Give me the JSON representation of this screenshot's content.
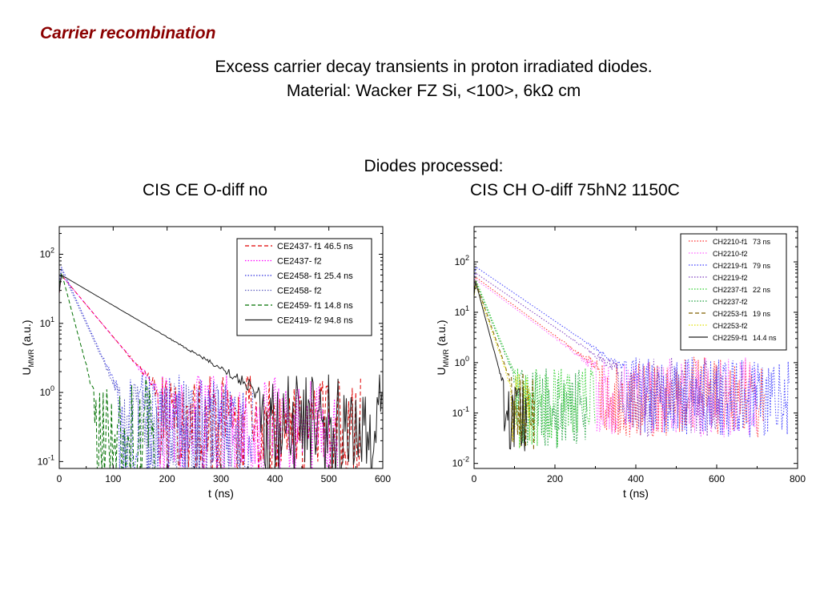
{
  "slide": {
    "heading": "Carrier recombination",
    "title_line1": "Excess carrier decay transients in proton irradiated  diodes.",
    "title_line2_prefix": "Material: Wacker FZ Si,  <100>,  6k",
    "title_line2_omega": "Ω",
    "title_line2_suffix": " cm",
    "diodes_heading": "Diodes  processed:",
    "left_caption": "CIS CE O-diff no",
    "right_caption": "CIS CH O-diff 75hN2 1150C"
  },
  "chart_data": [
    {
      "type": "line",
      "yscale": "log",
      "xlabel": "t (ns)",
      "ylabel": "U",
      "ylabel_sub": "MWR",
      "ylabel_unit": "(a.u.)",
      "xlim": [
        0,
        600
      ],
      "ylim_log10": [
        -1.1,
        2.4
      ],
      "xticks": [
        0,
        100,
        200,
        300,
        400,
        500,
        600
      ],
      "yticks": [
        {
          "base": "10",
          "exp": "2"
        },
        {
          "base": "10",
          "exp": "1"
        },
        {
          "base": "10",
          "exp": "0"
        },
        {
          "base": "10",
          "exp": "-1"
        }
      ],
      "legend_position": "top-right",
      "series": [
        {
          "name": "CE2437- f1 46.5 ns",
          "color": "#e00000",
          "dash": "dashed",
          "peak": 50,
          "tau": 46.5,
          "noise_floor": 0.35,
          "end": 560
        },
        {
          "name": "CE2437- f2",
          "color": "#ff00ff",
          "dash": "dotted",
          "peak": 50,
          "tau": 46.5,
          "noise_floor": 0.35,
          "end": 520
        },
        {
          "name": "CE2458- f1 25.4 ns",
          "color": "#3030e0",
          "dash": "dotted",
          "peak": 65,
          "tau": 25.4,
          "noise_floor": 0.35,
          "end": 360
        },
        {
          "name": "CE2458- f2",
          "color": "#6060c0",
          "dash": "dotted",
          "peak": 60,
          "tau": 25.4,
          "noise_floor": 0.3,
          "end": 340
        },
        {
          "name": "CE2459- f1 14.8 ns",
          "color": "#007000",
          "dash": "dashed",
          "peak": 55,
          "tau": 14.8,
          "noise_floor": 0.3,
          "end": 180
        },
        {
          "name": "CE2419- f2 94.8 ns",
          "color": "#202020",
          "dash": "solid",
          "peak": 50,
          "tau": 94.8,
          "noise_floor": 0.35,
          "end": 600
        }
      ]
    },
    {
      "type": "line",
      "yscale": "log",
      "xlabel": "t (ns)",
      "ylabel": "U",
      "ylabel_sub": "MWR",
      "ylabel_unit": "(a.u.)",
      "xlim": [
        0,
        800
      ],
      "ylim_log10": [
        -2.1,
        2.7
      ],
      "xticks": [
        0,
        200,
        400,
        600,
        800
      ],
      "yticks": [
        {
          "base": "10",
          "exp": "2"
        },
        {
          "base": "10",
          "exp": "1"
        },
        {
          "base": "10",
          "exp": "0"
        },
        {
          "base": "10",
          "exp": "-1"
        },
        {
          "base": "10",
          "exp": "-2"
        }
      ],
      "legend_position": "top-right",
      "series": [
        {
          "name": "CH2210-f1",
          "tau_label": "73 ns",
          "color": "#ff3030",
          "dash": "dotted",
          "peak": 50,
          "tau": 73,
          "noise_floor": 0.25,
          "end": 720
        },
        {
          "name": "CH2210-f2",
          "tau_label": "",
          "color": "#ff60ff",
          "dash": "dotted",
          "peak": 45,
          "tau": 73,
          "noise_floor": 0.25,
          "end": 700
        },
        {
          "name": "CH2219-f1",
          "tau_label": "79 ns",
          "color": "#4040ff",
          "dash": "dotted",
          "peak": 80,
          "tau": 79,
          "noise_floor": 0.25,
          "end": 780
        },
        {
          "name": "CH2219-f2",
          "tau_label": "",
          "color": "#8040c0",
          "dash": "dotted",
          "peak": 60,
          "tau": 79,
          "noise_floor": 0.25,
          "end": 620
        },
        {
          "name": "CH2237-f1",
          "tau_label": "22 ns",
          "color": "#30d030",
          "dash": "dotted",
          "peak": 45,
          "tau": 22,
          "noise_floor": 0.15,
          "end": 300
        },
        {
          "name": "CH2237-f2",
          "tau_label": "",
          "color": "#20a040",
          "dash": "dotted",
          "peak": 40,
          "tau": 22,
          "noise_floor": 0.15,
          "end": 280
        },
        {
          "name": "CH2253-f1",
          "tau_label": "19 ns",
          "color": "#806000",
          "dash": "dashed",
          "peak": 40,
          "tau": 19,
          "noise_floor": 0.12,
          "end": 150
        },
        {
          "name": "CH2253-f2",
          "tau_label": "",
          "color": "#e0e000",
          "dash": "dotted",
          "peak": 35,
          "tau": 19,
          "noise_floor": 0.12,
          "end": 140
        },
        {
          "name": "CH2259-f1",
          "tau_label": "14.4 ns",
          "color": "#202020",
          "dash": "solid",
          "peak": 40,
          "tau": 14.4,
          "noise_floor": 0.1,
          "end": 130
        }
      ]
    }
  ]
}
